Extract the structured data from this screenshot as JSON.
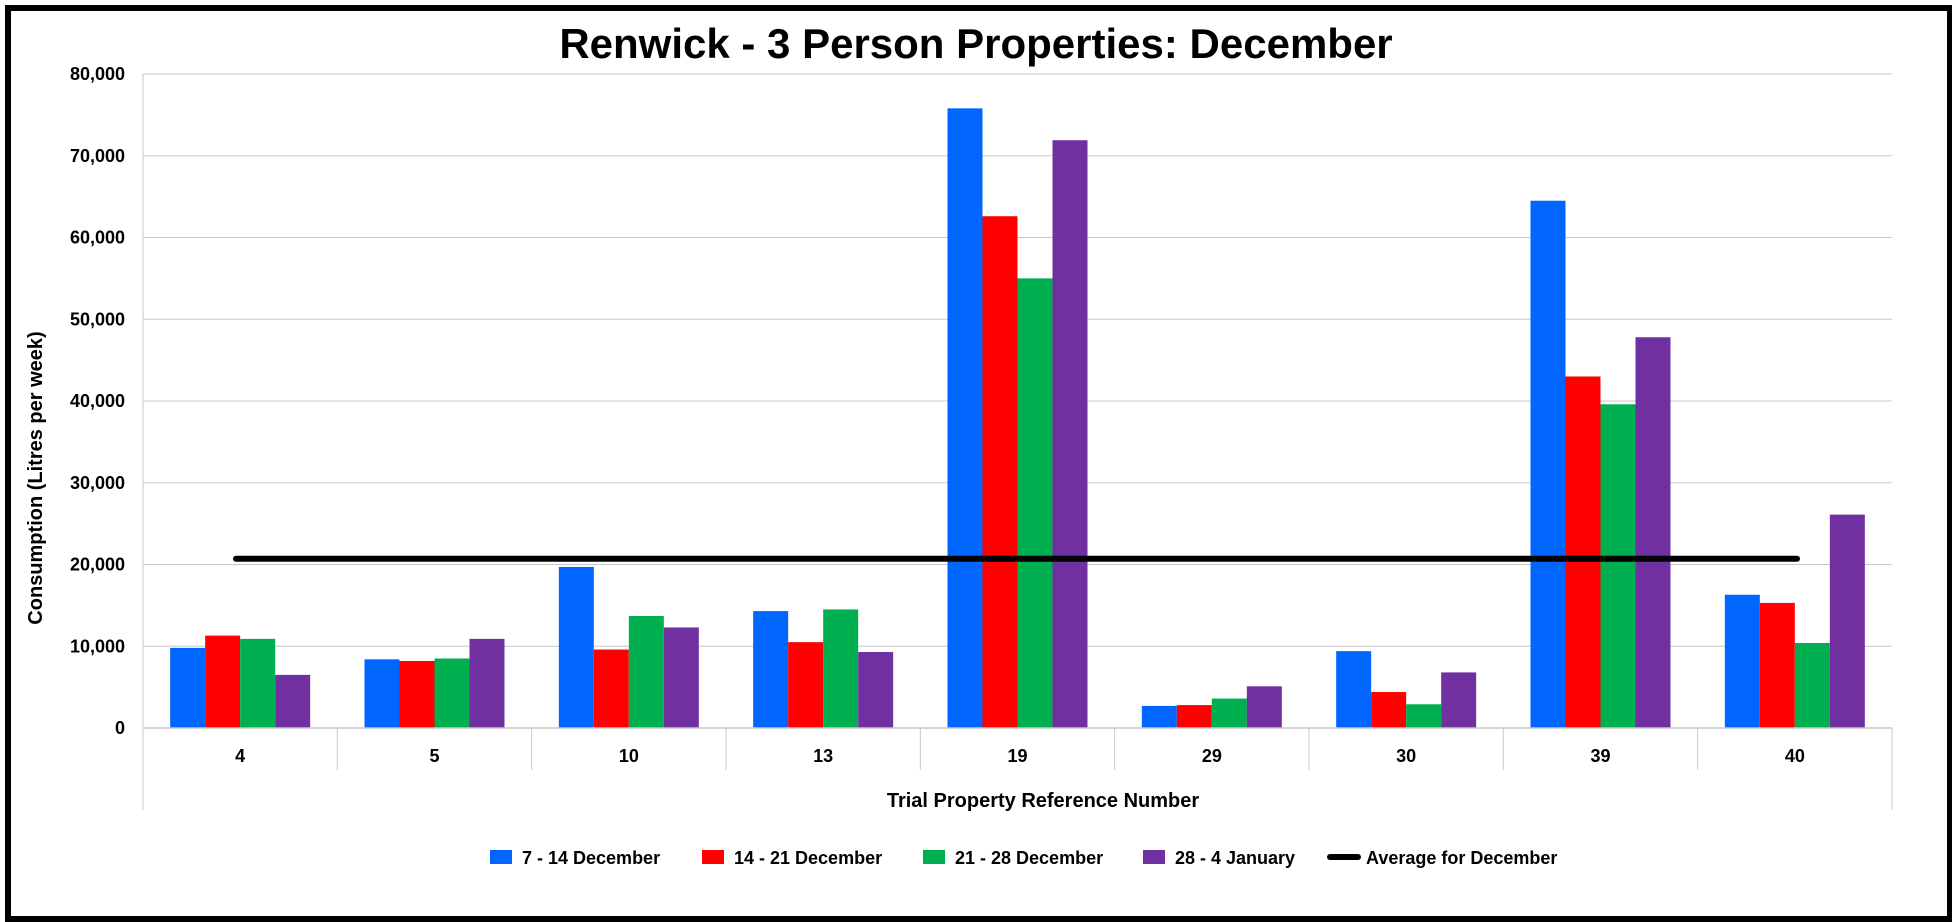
{
  "chart_data": {
    "type": "bar",
    "title": "Renwick - 3 Person Properties: December",
    "xlabel": "Trial Property Reference Number",
    "ylabel": "Consumption (Litres per week)",
    "ylim": [
      0,
      80000
    ],
    "yticks": [
      0,
      10000,
      20000,
      30000,
      40000,
      50000,
      60000,
      70000,
      80000
    ],
    "ytick_labels": [
      "0",
      "10,000",
      "20,000",
      "30,000",
      "40,000",
      "50,000",
      "60,000",
      "70,000",
      "80,000"
    ],
    "grid": "horizontal",
    "legend_position": "bottom",
    "categories": [
      "4",
      "5",
      "10",
      "13",
      "19",
      "29",
      "30",
      "39",
      "40"
    ],
    "series": [
      {
        "name": "7 - 14 December",
        "color": "#0066ff",
        "values": [
          9800,
          8400,
          19700,
          14300,
          75800,
          2700,
          9400,
          64500,
          16300
        ]
      },
      {
        "name": "14 - 21 December",
        "color": "#ff0000",
        "values": [
          11300,
          8200,
          9600,
          10500,
          62600,
          2800,
          4400,
          43000,
          15300
        ]
      },
      {
        "name": "21 - 28 December",
        "color": "#00b050",
        "values": [
          10900,
          8500,
          13700,
          14500,
          55000,
          3600,
          2900,
          39600,
          10400
        ]
      },
      {
        "name": "28 - 4 January",
        "color": "#7030a0",
        "values": [
          6500,
          10900,
          12300,
          9300,
          71900,
          5100,
          6800,
          47800,
          26100
        ]
      }
    ],
    "reference_line": {
      "name": "Average for December",
      "color": "#000000",
      "value": 20700
    }
  }
}
